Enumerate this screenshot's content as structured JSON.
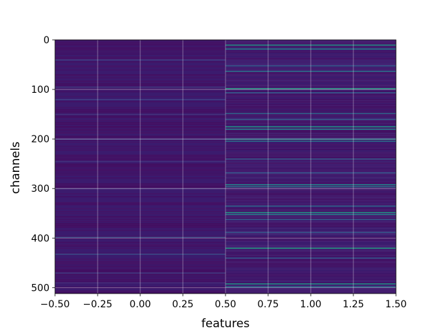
{
  "chart_data": {
    "type": "heatmap",
    "title": "",
    "xlabel": "features",
    "ylabel": "channels",
    "xlim": [
      -0.5,
      1.5
    ],
    "ylim": [
      512,
      0
    ],
    "x_ticks": [
      "−0.50",
      "−0.25",
      "0.00",
      "0.25",
      "0.50",
      "0.75",
      "1.00",
      "1.25",
      "1.50"
    ],
    "x_tick_values": [
      -0.5,
      -0.25,
      0.0,
      0.25,
      0.5,
      0.75,
      1.0,
      1.25,
      1.5
    ],
    "y_ticks": [
      "0",
      "100",
      "200",
      "300",
      "400",
      "500"
    ],
    "y_tick_values": [
      0,
      100,
      200,
      300,
      400,
      500
    ],
    "grid": true,
    "colormap": "viridis",
    "columns": [
      0,
      1
    ],
    "n_channels": 512,
    "base_color": "#3b1b6e",
    "column_1_bright_rows": [
      {
        "channel": 10,
        "value": 0.55
      },
      {
        "channel": 18,
        "value": 0.45
      },
      {
        "channel": 52,
        "value": 0.3
      },
      {
        "channel": 63,
        "value": 0.4
      },
      {
        "channel": 98,
        "value": 0.6
      },
      {
        "channel": 106,
        "value": 0.3
      },
      {
        "channel": 148,
        "value": 0.35
      },
      {
        "channel": 160,
        "value": 0.3
      },
      {
        "channel": 175,
        "value": 0.55
      },
      {
        "channel": 180,
        "value": 0.45
      },
      {
        "channel": 200,
        "value": 0.5
      },
      {
        "channel": 204,
        "value": 0.4
      },
      {
        "channel": 240,
        "value": 0.3
      },
      {
        "channel": 268,
        "value": 0.3
      },
      {
        "channel": 292,
        "value": 0.5
      },
      {
        "channel": 296,
        "value": 0.4
      },
      {
        "channel": 335,
        "value": 0.35
      },
      {
        "channel": 348,
        "value": 0.55
      },
      {
        "channel": 352,
        "value": 0.45
      },
      {
        "channel": 362,
        "value": 0.3
      },
      {
        "channel": 388,
        "value": 0.3
      },
      {
        "channel": 420,
        "value": 0.6
      },
      {
        "channel": 440,
        "value": 0.3
      },
      {
        "channel": 492,
        "value": 0.55
      },
      {
        "channel": 498,
        "value": 0.4
      }
    ],
    "column_0_bright_rows": [
      {
        "channel": 40,
        "value": 0.2
      },
      {
        "channel": 95,
        "value": 0.18
      },
      {
        "channel": 120,
        "value": 0.2
      },
      {
        "channel": 150,
        "value": 0.15
      },
      {
        "channel": 200,
        "value": 0.2
      },
      {
        "channel": 245,
        "value": 0.15
      },
      {
        "channel": 300,
        "value": 0.15
      },
      {
        "channel": 398,
        "value": 0.25
      },
      {
        "channel": 432,
        "value": 0.25
      },
      {
        "channel": 470,
        "value": 0.18
      },
      {
        "channel": 490,
        "value": 0.15
      }
    ]
  }
}
